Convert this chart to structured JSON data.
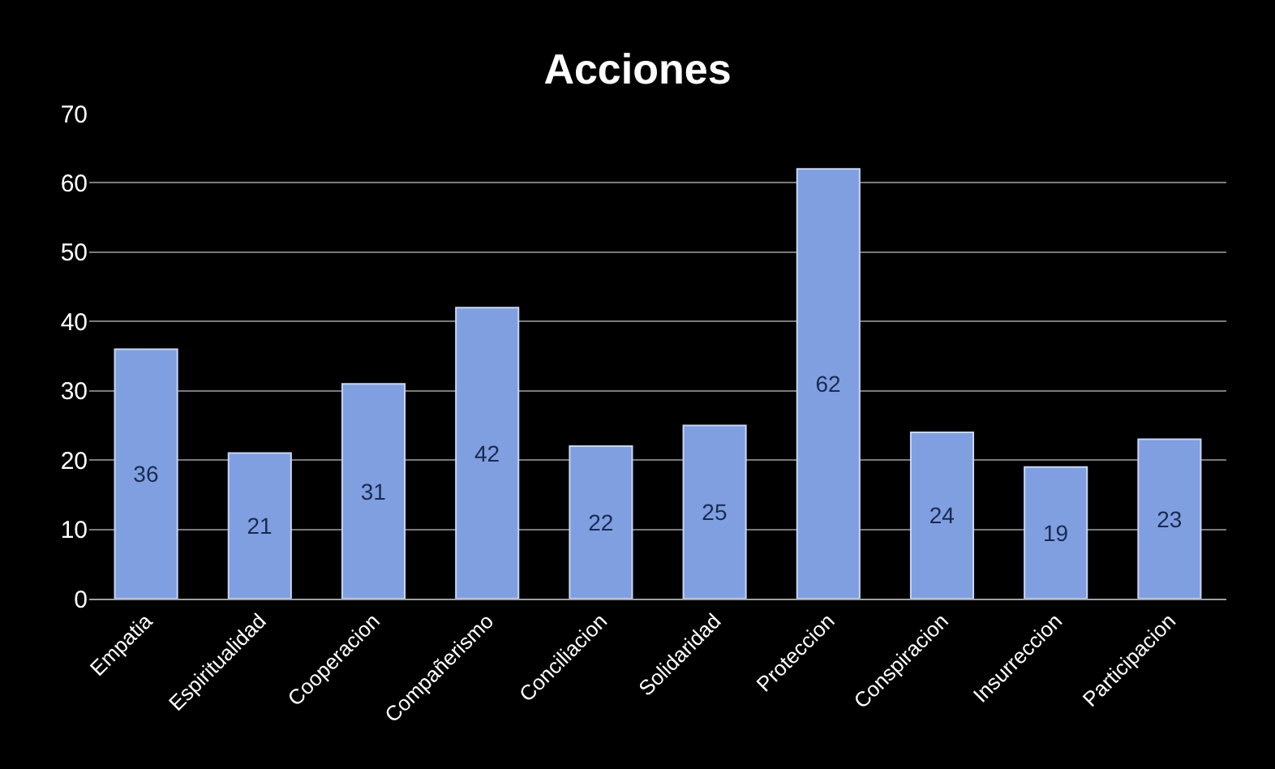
{
  "chart_data": {
    "type": "bar",
    "title": "Acciones",
    "categories": [
      "Empatia",
      "Espiritualidad",
      "Cooperacion",
      "Compañerismo",
      "Conciliacion",
      "Solidaridad",
      "Proteccion",
      "Conspiracion",
      "Insurreccion",
      "Participacion"
    ],
    "values": [
      36,
      21,
      31,
      42,
      22,
      25,
      62,
      24,
      19,
      23
    ],
    "color": "#7f9fe0",
    "ylim": [
      0,
      70
    ],
    "yticks": [
      0,
      10,
      20,
      30,
      40,
      50,
      60,
      70
    ],
    "grid": "y",
    "data_labels": true,
    "legend": false
  }
}
